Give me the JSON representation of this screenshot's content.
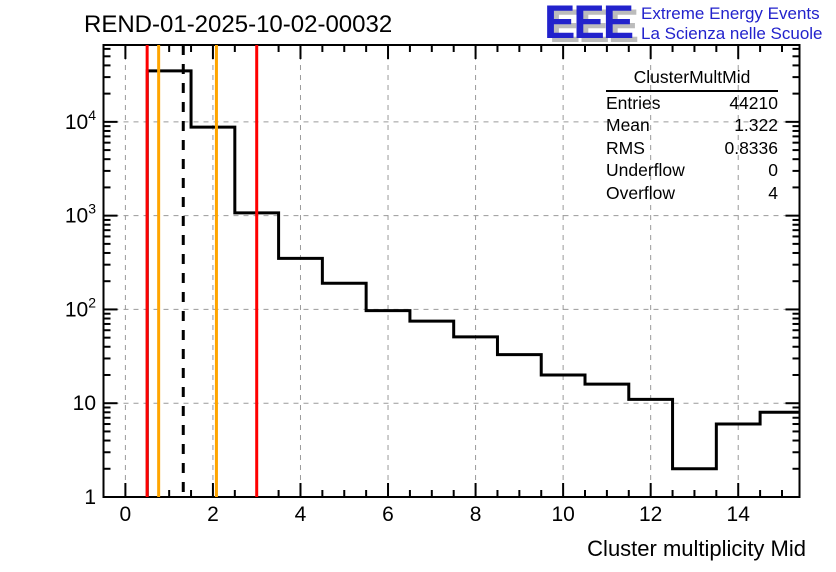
{
  "page": {
    "title": "REND-01-2025-10-02-00032"
  },
  "logo": {
    "acronym": "EEE",
    "line1": "Extreme Energy Events",
    "line2": "La Scienza nelle Scuole",
    "color": "#2222cc",
    "shadow_color": "#bcbcbc"
  },
  "stats": {
    "title": "ClusterMultMid",
    "rows": [
      {
        "label": "Entries",
        "value": "44210"
      },
      {
        "label": "Mean",
        "value": "1.322"
      },
      {
        "label": "RMS",
        "value": "0.8336"
      },
      {
        "label": "Underflow",
        "value": "0"
      },
      {
        "label": "Overflow",
        "value": "4"
      }
    ]
  },
  "chart_data": {
    "type": "histogram-step",
    "title": "REND-01-2025-10-02-00032",
    "xlabel": "Cluster multiplicity Mid",
    "ylabel": "",
    "y_scale": "log",
    "xlim": [
      -0.5,
      15.4
    ],
    "ylim": [
      1,
      66000
    ],
    "grid": true,
    "bin_width": 1,
    "bin_centers": [
      0,
      1,
      2,
      3,
      4,
      5,
      6,
      7,
      8,
      9,
      10,
      11,
      12,
      13,
      14,
      15
    ],
    "counts": [
      0,
      35000,
      8800,
      1070,
      350,
      190,
      97,
      75,
      51,
      33,
      20,
      16,
      11,
      2,
      6,
      8
    ],
    "x_major_ticks": [
      0,
      2,
      4,
      6,
      8,
      10,
      12,
      14
    ],
    "x_tick_labels": [
      "0",
      "2",
      "4",
      "6",
      "8",
      "10",
      "12",
      "14"
    ],
    "x_minor_step": 0.5,
    "y_major_ticks": [
      1,
      10,
      100,
      1000,
      10000
    ],
    "y_tick_labels": [
      {
        "base": "1",
        "exp": ""
      },
      {
        "base": "10",
        "exp": ""
      },
      {
        "base": "10",
        "exp": "2"
      },
      {
        "base": "10",
        "exp": "3"
      },
      {
        "base": "10",
        "exp": "4"
      }
    ],
    "markers": [
      {
        "name": "red-line-low",
        "x": 0.497,
        "color": "#ff0000",
        "style": "solid"
      },
      {
        "name": "orange-line-low",
        "x": 0.76,
        "color": "#ffa500",
        "style": "solid"
      },
      {
        "name": "mean-dashed-line",
        "x": 1.322,
        "color": "#000000",
        "style": "dashed"
      },
      {
        "name": "orange-line-high",
        "x": 2.08,
        "color": "#ffa500",
        "style": "solid"
      },
      {
        "name": "red-line-high",
        "x": 3.0,
        "color": "#ff0000",
        "style": "solid"
      }
    ],
    "line_color": "#000000",
    "grid_color": "#9a9a9a"
  }
}
